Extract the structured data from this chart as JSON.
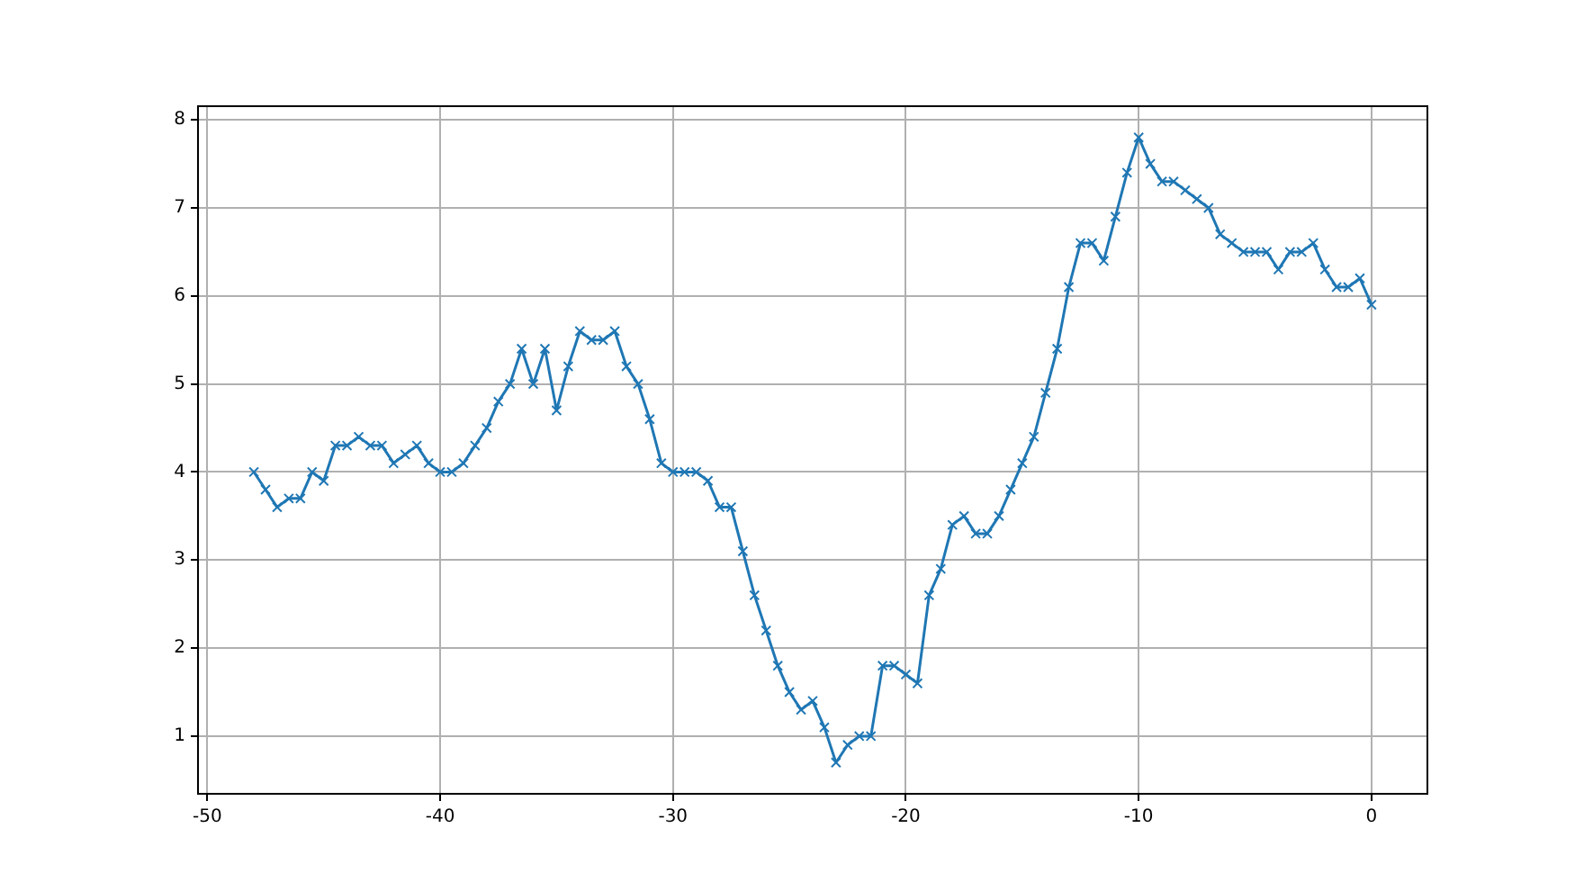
{
  "chart_data": {
    "type": "line",
    "x": [
      -48,
      -47.5,
      -47,
      -46.5,
      -46,
      -45.5,
      -45,
      -44.5,
      -44,
      -43.5,
      -43,
      -42.5,
      -42,
      -41.5,
      -41,
      -40.5,
      -40,
      -39.5,
      -39,
      -38.5,
      -38,
      -37.5,
      -37,
      -36.5,
      -36,
      -35.5,
      -35,
      -34.5,
      -34,
      -33.5,
      -33,
      -32.5,
      -32,
      -31.5,
      -31,
      -30.5,
      -30,
      -29.5,
      -29,
      -28.5,
      -28,
      -27.5,
      -27,
      -26.5,
      -26,
      -25.5,
      -25,
      -24.5,
      -24,
      -23.5,
      -23,
      -22.5,
      -22,
      -21.5,
      -21,
      -20.5,
      -20,
      -19.5,
      -19,
      -18.5,
      -18,
      -17.5,
      -17,
      -16.5,
      -16,
      -15.5,
      -15,
      -14.5,
      -14,
      -13.5,
      -13,
      -12.5,
      -12,
      -11.5,
      -11,
      -10.5,
      -10,
      -9.5,
      -9,
      -8.5,
      -8,
      -7.5,
      -7,
      -6.5,
      -6,
      -5.5,
      -5,
      -4.5,
      -4,
      -3.5,
      -3,
      -2.5,
      -2,
      -1.5,
      -1,
      -0.5,
      0
    ],
    "series": [
      {
        "color": "#1f77b4",
        "values": [
          4.0,
          3.8,
          3.6,
          3.7,
          3.7,
          4.0,
          3.9,
          4.3,
          4.3,
          4.4,
          4.3,
          4.3,
          4.1,
          4.2,
          4.3,
          4.1,
          4.0,
          4.0,
          4.1,
          4.3,
          4.5,
          4.8,
          5.0,
          5.4,
          5.0,
          5.4,
          4.7,
          5.2,
          5.6,
          5.5,
          5.5,
          5.6,
          5.2,
          5.0,
          4.6,
          4.1,
          4.0,
          4.0,
          4.0,
          3.9,
          3.6,
          3.6,
          3.1,
          2.6,
          2.2,
          1.8,
          1.5,
          1.3,
          1.4,
          1.1,
          0.7,
          0.9,
          1.0,
          1.0,
          1.8,
          1.8,
          1.7,
          1.6,
          2.6,
          2.9,
          3.4,
          3.5,
          3.3,
          3.3,
          3.5,
          3.8,
          4.1,
          4.4,
          4.9,
          5.4,
          6.1,
          6.6,
          6.6,
          6.4,
          6.9,
          7.4,
          7.8,
          7.5,
          7.3,
          7.3,
          7.2,
          7.1,
          7.0,
          6.7,
          6.6,
          6.5,
          6.5,
          6.5,
          6.3,
          6.5,
          6.5,
          6.6,
          6.3,
          6.1,
          6.1,
          6.2,
          5.9
        ]
      }
    ],
    "xlim": [
      -50.4,
      2.4
    ],
    "ylim": [
      0.345,
      8.155
    ],
    "xticks": [
      -50,
      -40,
      -30,
      -20,
      -10,
      0
    ],
    "yticks": [
      1,
      2,
      3,
      4,
      5,
      6,
      7,
      8
    ],
    "grid": true,
    "marker": "cross",
    "line_style": "solid",
    "legend": false
  }
}
